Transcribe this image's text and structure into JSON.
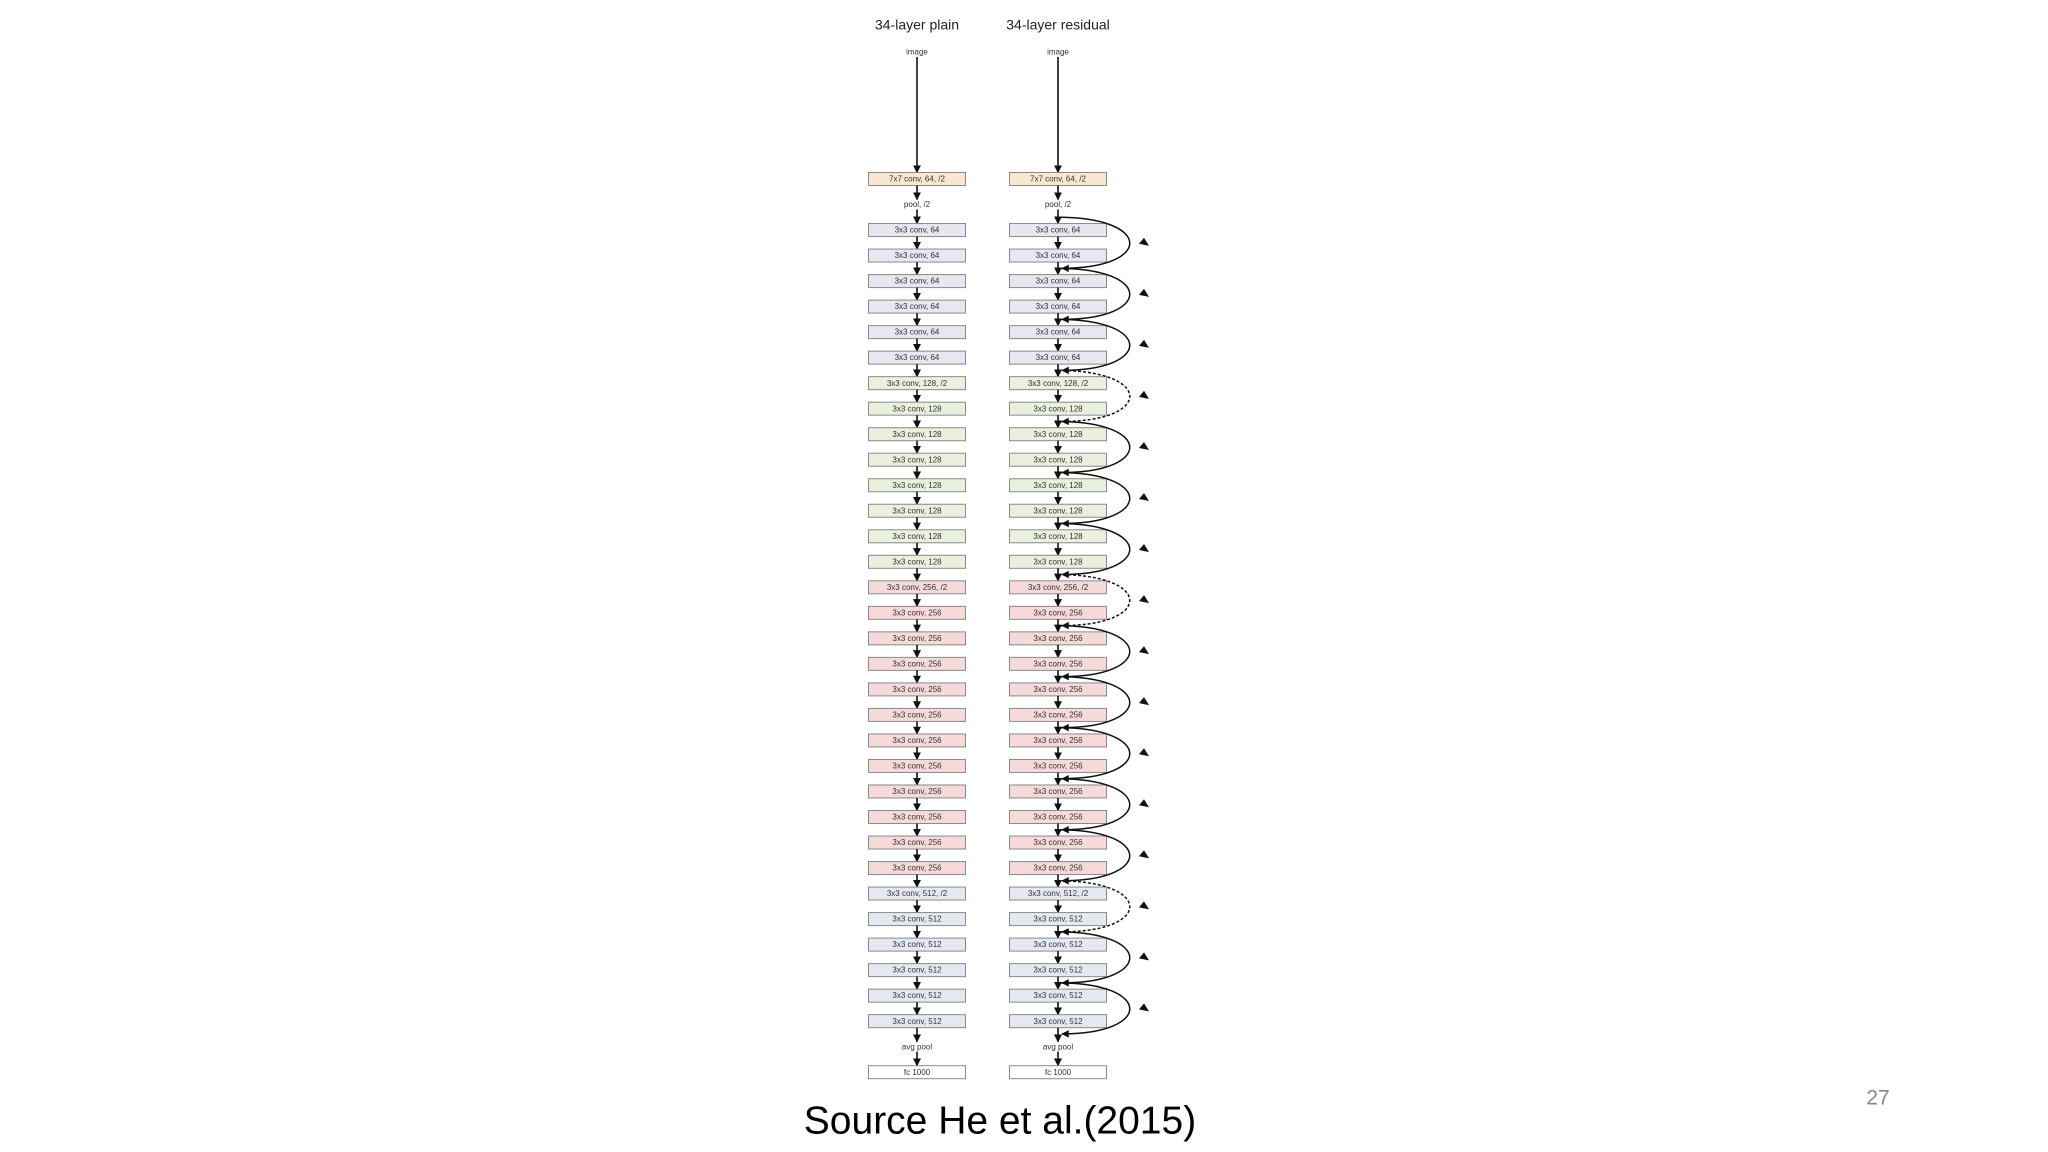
{
  "columns": [
    {
      "title": "34-layer plain",
      "nodes": [
        {
          "label": "image"
        },
        {
          "label": "7x7 conv, 64, /2",
          "color": "#f9e7d0"
        },
        {
          "label": "pool, /2"
        },
        {
          "label": "3x3 conv, 64",
          "color": "#e7e6f1"
        },
        {
          "label": "3x3 conv, 64",
          "color": "#e7e6f1"
        },
        {
          "label": "3x3 conv, 64",
          "color": "#e7e6f1"
        },
        {
          "label": "3x3 conv, 64",
          "color": "#e7e6f1"
        },
        {
          "label": "3x3 conv, 64",
          "color": "#e7e6f1"
        },
        {
          "label": "3x3 conv, 64",
          "color": "#e7e6f1"
        },
        {
          "label": "3x3 conv, 128, /2",
          "color": "#e9f0dd"
        },
        {
          "label": "3x3 conv, 128",
          "color": "#e9f0dd"
        },
        {
          "label": "3x3 conv, 128",
          "color": "#e9f0dd"
        },
        {
          "label": "3x3 conv, 128",
          "color": "#e9f0dd"
        },
        {
          "label": "3x3 conv, 128",
          "color": "#e9f0dd"
        },
        {
          "label": "3x3 conv, 128",
          "color": "#e9f0dd"
        },
        {
          "label": "3x3 conv, 128",
          "color": "#e9f0dd"
        },
        {
          "label": "3x3 conv, 128",
          "color": "#e9f0dd"
        },
        {
          "label": "3x3 conv, 256, /2",
          "color": "#f6dada"
        },
        {
          "label": "3x3 conv, 256",
          "color": "#f6dada"
        },
        {
          "label": "3x3 conv, 256",
          "color": "#f6dada"
        },
        {
          "label": "3x3 conv, 256",
          "color": "#f6dada"
        },
        {
          "label": "3x3 conv, 256",
          "color": "#f6dada"
        },
        {
          "label": "3x3 conv, 256",
          "color": "#f6dada"
        },
        {
          "label": "3x3 conv, 256",
          "color": "#f6dada"
        },
        {
          "label": "3x3 conv, 256",
          "color": "#f6dada"
        },
        {
          "label": "3x3 conv, 256",
          "color": "#f6dada"
        },
        {
          "label": "3x3 conv, 256",
          "color": "#f6dada"
        },
        {
          "label": "3x3 conv, 256",
          "color": "#f6dada"
        },
        {
          "label": "3x3 conv, 256",
          "color": "#f6dada"
        },
        {
          "label": "3x3 conv, 512, /2",
          "color": "#e4e9f1"
        },
        {
          "label": "3x3 conv, 512",
          "color": "#e4e9f1"
        },
        {
          "label": "3x3 conv, 512",
          "color": "#e4e9f1"
        },
        {
          "label": "3x3 conv, 512",
          "color": "#e4e9f1"
        },
        {
          "label": "3x3 conv, 512",
          "color": "#e4e9f1"
        },
        {
          "label": "3x3 conv, 512",
          "color": "#e4e9f1"
        },
        {
          "label": "avg pool"
        },
        {
          "label": "fc 1000",
          "color": "#ffffff"
        }
      ]
    },
    {
      "title": "34-layer residual",
      "nodes": [
        {
          "label": "image"
        },
        {
          "label": "7x7 conv, 64, /2",
          "color": "#f9e7d0"
        },
        {
          "label": "pool, /2"
        },
        {
          "label": "3x3 conv, 64",
          "color": "#e7e6f1"
        },
        {
          "label": "3x3 conv, 64",
          "color": "#e7e6f1"
        },
        {
          "label": "3x3 conv, 64",
          "color": "#e7e6f1"
        },
        {
          "label": "3x3 conv, 64",
          "color": "#e7e6f1"
        },
        {
          "label": "3x3 conv, 64",
          "color": "#e7e6f1"
        },
        {
          "label": "3x3 conv, 64",
          "color": "#e7e6f1"
        },
        {
          "label": "3x3 conv, 128, /2",
          "color": "#e9f0dd"
        },
        {
          "label": "3x3 conv, 128",
          "color": "#e9f0dd"
        },
        {
          "label": "3x3 conv, 128",
          "color": "#e9f0dd"
        },
        {
          "label": "3x3 conv, 128",
          "color": "#e9f0dd"
        },
        {
          "label": "3x3 conv, 128",
          "color": "#e9f0dd"
        },
        {
          "label": "3x3 conv, 128",
          "color": "#e9f0dd"
        },
        {
          "label": "3x3 conv, 128",
          "color": "#e9f0dd"
        },
        {
          "label": "3x3 conv, 128",
          "color": "#e9f0dd"
        },
        {
          "label": "3x3 conv, 256, /2",
          "color": "#f6dada"
        },
        {
          "label": "3x3 conv, 256",
          "color": "#f6dada"
        },
        {
          "label": "3x3 conv, 256",
          "color": "#f6dada"
        },
        {
          "label": "3x3 conv, 256",
          "color": "#f6dada"
        },
        {
          "label": "3x3 conv, 256",
          "color": "#f6dada"
        },
        {
          "label": "3x3 conv, 256",
          "color": "#f6dada"
        },
        {
          "label": "3x3 conv, 256",
          "color": "#f6dada"
        },
        {
          "label": "3x3 conv, 256",
          "color": "#f6dada"
        },
        {
          "label": "3x3 conv, 256",
          "color": "#f6dada"
        },
        {
          "label": "3x3 conv, 256",
          "color": "#f6dada"
        },
        {
          "label": "3x3 conv, 256",
          "color": "#f6dada"
        },
        {
          "label": "3x3 conv, 256",
          "color": "#f6dada"
        },
        {
          "label": "3x3 conv, 512, /2",
          "color": "#e4e9f1"
        },
        {
          "label": "3x3 conv, 512",
          "color": "#e4e9f1"
        },
        {
          "label": "3x3 conv, 512",
          "color": "#e4e9f1"
        },
        {
          "label": "3x3 conv, 512",
          "color": "#e4e9f1"
        },
        {
          "label": "3x3 conv, 512",
          "color": "#e4e9f1"
        },
        {
          "label": "3x3 conv, 512",
          "color": "#e4e9f1"
        },
        {
          "label": "avg pool"
        },
        {
          "label": "fc 1000",
          "color": "#ffffff"
        }
      ]
    }
  ],
  "caption": "Source He et al.(2015)",
  "page_number": "27"
}
